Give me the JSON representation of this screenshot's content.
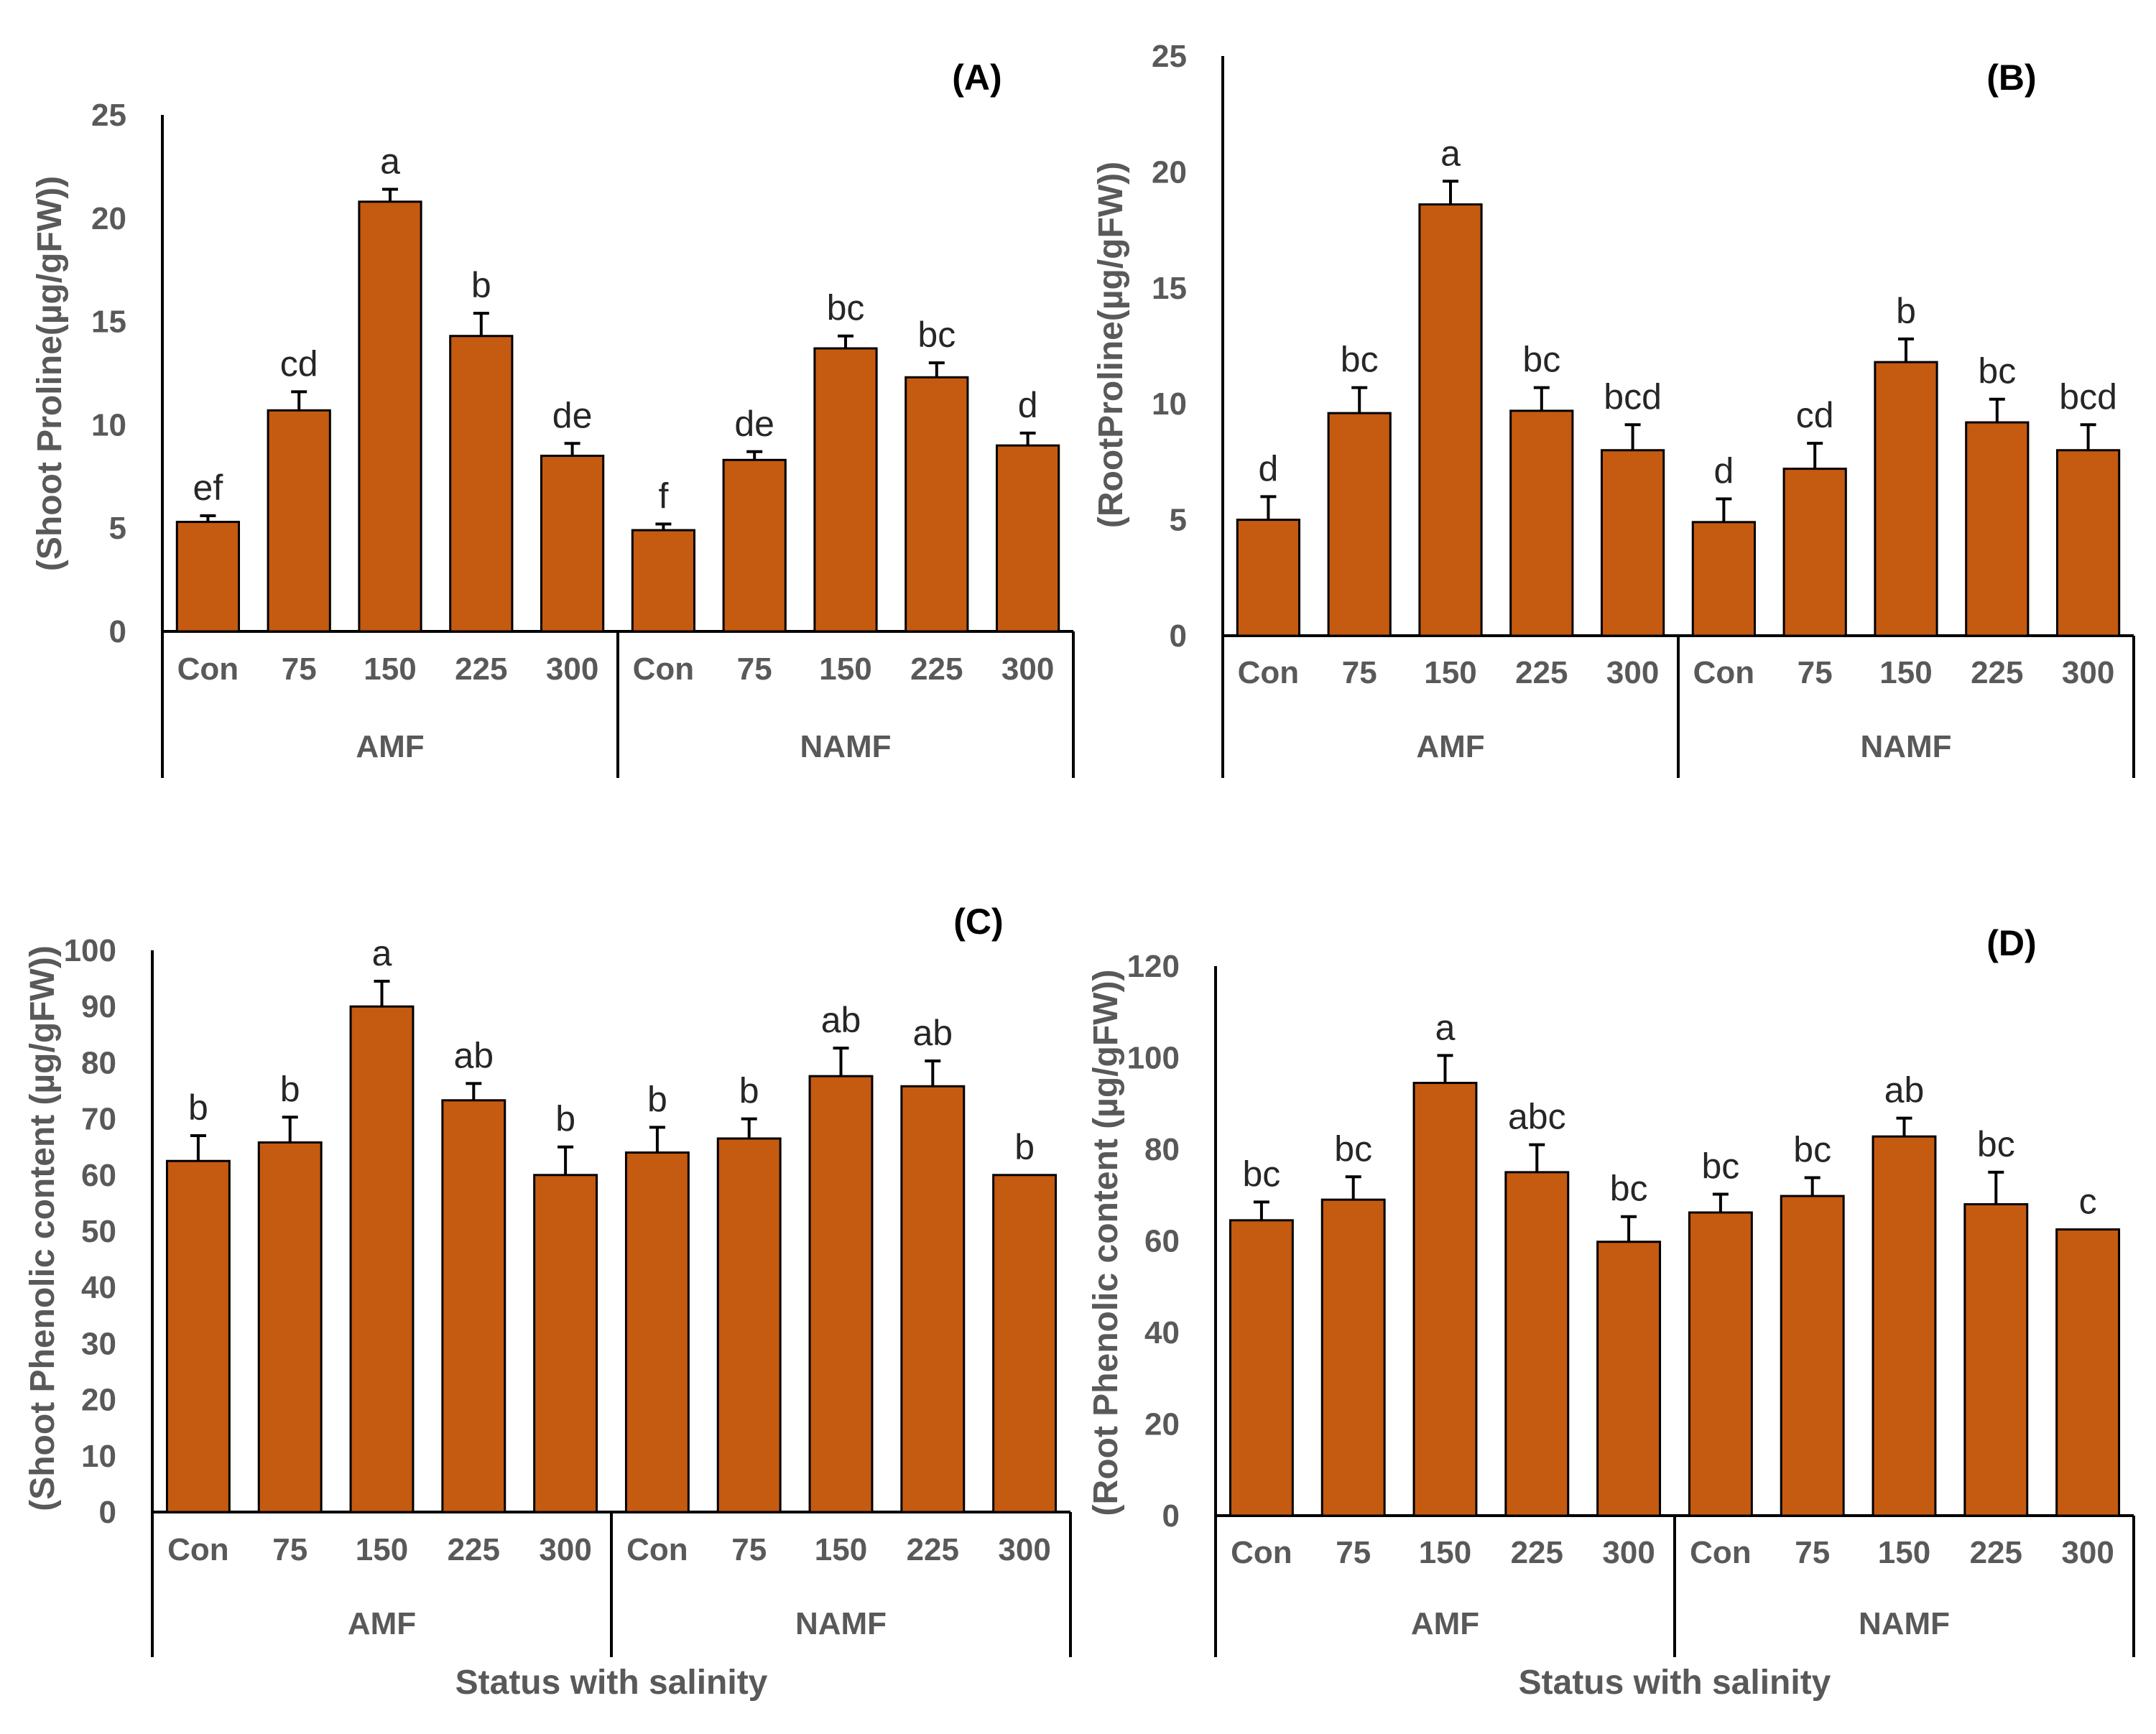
{
  "bar_color": "#C55A11",
  "chart_data": [
    {
      "id": "A",
      "type": "bar",
      "title": "(A)",
      "ylabel": "(Shoot Proline(µg/gFW))",
      "xlabel": "",
      "ylim": [
        0,
        25
      ],
      "yticks": [
        0,
        5,
        10,
        15,
        20,
        25
      ],
      "groups": [
        "AMF",
        "NAMF"
      ],
      "categories": [
        "Con",
        "75",
        "150",
        "225",
        "300",
        "Con",
        "75",
        "150",
        "225",
        "300"
      ],
      "values": [
        5.3,
        10.7,
        20.8,
        14.3,
        8.5,
        4.9,
        8.3,
        13.7,
        12.3,
        9.0
      ],
      "errors": [
        0.3,
        0.9,
        0.6,
        1.1,
        0.6,
        0.3,
        0.4,
        0.6,
        0.7,
        0.6
      ],
      "labels": [
        "ef",
        "cd",
        "a",
        "b",
        "de",
        "f",
        "de",
        "bc",
        "bc",
        "d"
      ]
    },
    {
      "id": "B",
      "type": "bar",
      "title": "(B)",
      "ylabel": "(RootProline(µg/gFW))",
      "xlabel": "",
      "ylim": [
        0,
        25
      ],
      "yticks": [
        0,
        5,
        10,
        15,
        20,
        25
      ],
      "groups": [
        "AMF",
        "NAMF"
      ],
      "categories": [
        "Con",
        "75",
        "150",
        "225",
        "300",
        "Con",
        "75",
        "150",
        "225",
        "300"
      ],
      "values": [
        5.0,
        9.6,
        18.6,
        9.7,
        8.0,
        4.9,
        7.2,
        11.8,
        9.2,
        8.0
      ],
      "errors": [
        1.0,
        1.1,
        1.0,
        1.0,
        1.1,
        1.0,
        1.1,
        1.0,
        1.0,
        1.1
      ],
      "labels": [
        "d",
        "bc",
        "a",
        "bc",
        "bcd",
        "d",
        "cd",
        "b",
        "bc",
        "bcd"
      ]
    },
    {
      "id": "C",
      "type": "bar",
      "title": "(C)",
      "ylabel": "(Shoot Phenolic content (µg/gFW))",
      "xlabel": "Status with salinity",
      "ylim": [
        0,
        100
      ],
      "yticks": [
        0,
        10,
        20,
        30,
        40,
        50,
        60,
        70,
        80,
        90,
        100
      ],
      "groups": [
        "AMF",
        "NAMF"
      ],
      "categories": [
        "Con",
        "75",
        "150",
        "225",
        "300",
        "Con",
        "75",
        "150",
        "225",
        "300"
      ],
      "values": [
        62.5,
        65.8,
        90.0,
        73.3,
        60.0,
        64.0,
        66.5,
        77.6,
        75.8,
        60.0
      ],
      "errors": [
        4.5,
        4.5,
        4.5,
        3.0,
        5.0,
        4.5,
        3.5,
        5.0,
        4.5,
        0
      ],
      "labels": [
        "b",
        "b",
        "a",
        "ab",
        "b",
        "b",
        "b",
        "ab",
        "ab",
        "b"
      ]
    },
    {
      "id": "D",
      "type": "bar",
      "title": "(D)",
      "ylabel": "(Root Phenolic content (µg/gFW))",
      "xlabel": "Status with salinity",
      "ylim": [
        0,
        120
      ],
      "yticks": [
        0,
        20,
        40,
        60,
        80,
        100,
        120
      ],
      "groups": [
        "AMF",
        "NAMF"
      ],
      "categories": [
        "Con",
        "75",
        "150",
        "225",
        "300",
        "Con",
        "75",
        "150",
        "225",
        "300"
      ],
      "values": [
        64.5,
        69.0,
        94.5,
        75.0,
        59.8,
        66.2,
        69.8,
        82.8,
        68.0,
        62.5
      ],
      "errors": [
        4.0,
        5.0,
        6.0,
        6.0,
        5.5,
        4.0,
        4.0,
        4.0,
        7.0,
        0
      ],
      "labels": [
        "bc",
        "bc",
        "a",
        "abc",
        "bc",
        "bc",
        "bc",
        "ab",
        "bc",
        "c"
      ]
    }
  ]
}
